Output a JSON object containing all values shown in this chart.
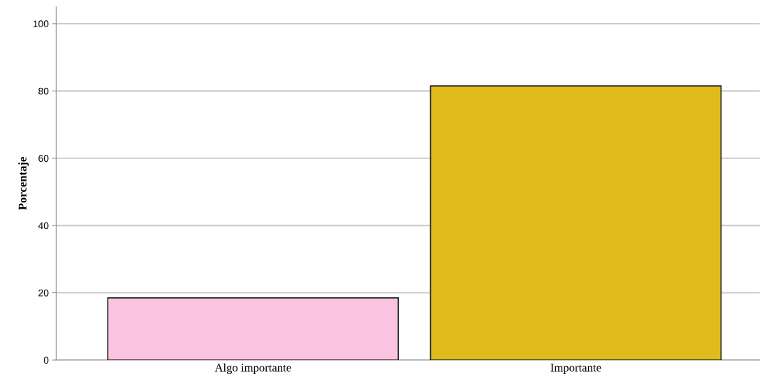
{
  "chart_data": {
    "type": "bar",
    "ylabel": "Porcentaje",
    "categories": [
      "Algo importante",
      "Importante"
    ],
    "values": [
      18.5,
      81.5
    ],
    "colors": [
      "#fbc3e2",
      "#e0bb1c"
    ],
    "ylim": [
      0,
      105
    ],
    "yticks": [
      0,
      20,
      40,
      60,
      80,
      100
    ],
    "grid": "y"
  }
}
